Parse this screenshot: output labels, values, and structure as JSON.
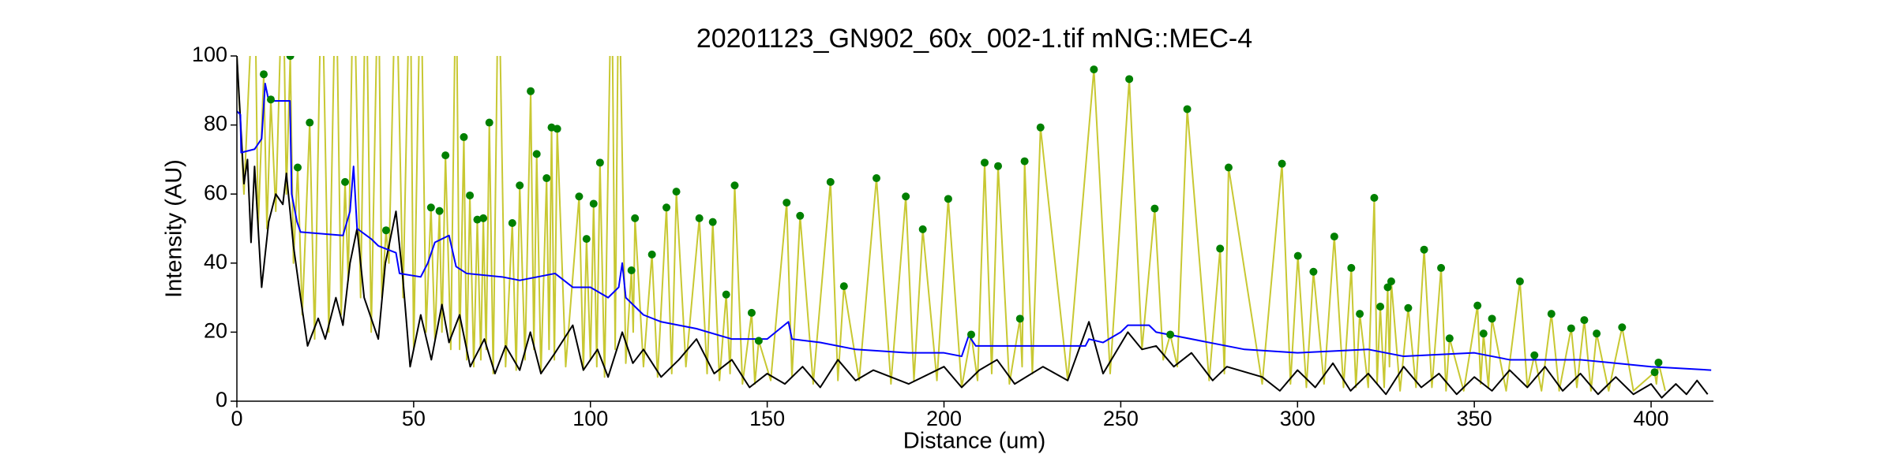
{
  "chart_data": {
    "type": "line",
    "title": "20201123_GN902_60x_002-1.tif mNG::MEC-4",
    "x_label": "Distance (um)",
    "y_label": "Intensity (AU)",
    "xlim": [
      0,
      417.5
    ],
    "ylim": [
      0,
      100
    ],
    "xticks": [
      0,
      50,
      100,
      150,
      200,
      250,
      300,
      350,
      400
    ],
    "yticks": [
      0,
      20,
      40,
      60,
      80,
      100
    ],
    "series": [
      {
        "style": "line",
        "color": "#c8c832",
        "x": [
          0,
          2,
          5,
          6,
          7.6,
          8.5,
          9.6,
          11,
          13,
          14,
          15.1,
          16,
          17.2,
          18.5,
          20.6,
          22,
          24,
          26,
          28,
          29.5,
          30.6,
          31.5,
          33,
          35,
          36.5,
          38,
          40,
          41,
          42.2,
          43,
          45,
          47,
          49,
          50,
          52,
          53.5,
          54.9,
          56,
          57.3,
          58,
          59,
          60.5,
          62,
          63,
          64.2,
          65,
          65.9,
          67,
          68,
          69,
          69.7,
          70.5,
          71.4,
          72.5,
          74,
          76,
          77.9,
          79,
          80,
          81.5,
          83.1,
          84,
          84.8,
          86,
          87.6,
          88.3,
          89,
          89.8,
          90.6,
          93,
          96.8,
          98,
          98.9,
          100,
          100.9,
          101.8,
          102.7,
          104,
          106,
          107,
          108,
          110,
          111.6,
          112.1,
          112.6,
          115,
          117.4,
          119,
          121.5,
          123,
          124.3,
          127,
          130.8,
          133,
          134.6,
          136.5,
          138.4,
          139.5,
          140.8,
          143,
          145.6,
          146.5,
          147.6,
          151,
          155.5,
          157,
          159.3,
          163,
          167.9,
          170,
          171.7,
          176,
          180.9,
          185,
          189.2,
          191.5,
          194,
          198,
          201.2,
          205,
          207.7,
          209.5,
          211.5,
          213.5,
          215.3,
          218.5,
          221.5,
          222.1,
          222.8,
          225,
          227.3,
          235,
          242.4,
          247,
          252.4,
          256,
          259.6,
          262,
          264,
          266,
          268.8,
          275,
          278.1,
          279.3,
          280.5,
          290,
          295.6,
          298,
          300.1,
          302.5,
          304.5,
          307.5,
          310.4,
          313,
          315.2,
          316.5,
          317.6,
          320,
          321.7,
          322.5,
          323.4,
          324.5,
          325.5,
          326,
          326.5,
          329,
          331.3,
          333.5,
          335.8,
          338,
          340.6,
          342,
          343,
          347,
          350.9,
          351.8,
          352.6,
          354,
          355,
          359,
          362.9,
          365,
          367,
          369,
          371.8,
          374,
          377.4,
          379,
          381.1,
          383,
          384.6,
          388,
          391.8,
          395,
          401,
          401.5,
          402.1,
          404
        ],
        "values": [
          100,
          60,
          130,
          50,
          94.7,
          50,
          87.4,
          55,
          130,
          60,
          100,
          40,
          67.7,
          25,
          80.7,
          18,
          130,
          20,
          130,
          25,
          63.5,
          35,
          130,
          30,
          130,
          20,
          130,
          30,
          49.5,
          40,
          130,
          30,
          130,
          15,
          130,
          20,
          56.1,
          18,
          55.1,
          20,
          71.2,
          15,
          130,
          15,
          76.5,
          12,
          59.6,
          10,
          52.6,
          12,
          53,
          15,
          80.7,
          8,
          130,
          10,
          51.6,
          9,
          62.5,
          12,
          89.8,
          15,
          71.6,
          8,
          64.6,
          15,
          79.3,
          12,
          78.9,
          10,
          59.3,
          9,
          47,
          12,
          57.2,
          10,
          69.1,
          7,
          130,
          15,
          130,
          11,
          37.9,
          20,
          53,
          10,
          42.5,
          7,
          56.1,
          8,
          60.7,
          10,
          53,
          8,
          51.9,
          6,
          30.9,
          8,
          62.5,
          5,
          25.6,
          5,
          17.5,
          6,
          57.5,
          7,
          53.7,
          5,
          63.5,
          6,
          33.3,
          6,
          64.6,
          5,
          59.3,
          6,
          49.8,
          6,
          58.6,
          4,
          19.3,
          6,
          69.1,
          8,
          68.1,
          5,
          23.9,
          10,
          69.5,
          8,
          79.3,
          6,
          96.1,
          8,
          93.3,
          15,
          55.8,
          12,
          19.3,
          10,
          84.6,
          6,
          44.2,
          8,
          67.7,
          5,
          68.8,
          5,
          42.1,
          4,
          37.5,
          5,
          47.7,
          4,
          38.6,
          4,
          25.3,
          4,
          58.9,
          5,
          27.4,
          4,
          33,
          10,
          34.7,
          3,
          27,
          4,
          43.9,
          4,
          38.6,
          3,
          18.2,
          3,
          27.7,
          5,
          19.6,
          4,
          23.9,
          3,
          34.7,
          4,
          13.3,
          3,
          25.3,
          3,
          21.1,
          4,
          23.5,
          3,
          19.6,
          3,
          21.4,
          3,
          8.4,
          5,
          11.2,
          3
        ]
      },
      {
        "style": "line",
        "color": "#000000",
        "x": [
          0,
          2,
          3,
          4,
          5,
          7,
          9,
          11,
          13,
          14,
          16,
          18,
          20,
          23,
          25,
          28,
          30,
          32,
          34,
          36,
          40,
          42,
          45,
          47,
          49,
          52,
          55,
          58,
          60,
          63,
          66,
          70,
          73,
          76,
          80,
          83,
          86,
          90,
          95,
          98,
          102,
          105,
          109,
          112,
          115,
          120,
          125,
          130,
          135,
          140,
          145,
          150,
          155,
          160,
          165,
          170,
          175,
          180,
          190,
          200,
          205,
          210,
          215,
          220,
          228,
          235,
          241,
          245,
          252,
          256,
          260,
          265,
          270,
          276,
          280,
          290,
          295,
          300,
          305,
          310,
          315,
          320,
          325,
          330,
          335,
          340,
          345,
          350,
          355,
          360,
          365,
          370,
          375,
          380,
          385,
          390,
          395,
          400,
          403,
          407,
          410,
          413,
          416
        ],
        "values": [
          100,
          63,
          70,
          46,
          68,
          33,
          52,
          60,
          57,
          66,
          45,
          30,
          16,
          24,
          18,
          30,
          22,
          40,
          50,
          30,
          18,
          40,
          55,
          35,
          10,
          25,
          12,
          28,
          17,
          25,
          10,
          18,
          8,
          16,
          9,
          20,
          8,
          14,
          22,
          9,
          15,
          7,
          20,
          11,
          15,
          7,
          12,
          18,
          8,
          12,
          4,
          8,
          5,
          10,
          4,
          12,
          6,
          9,
          5,
          10,
          4,
          9,
          12,
          5,
          10,
          6,
          23,
          8,
          20,
          15,
          16,
          10,
          14,
          6,
          10,
          7,
          3,
          9,
          4,
          11,
          3,
          8,
          2,
          10,
          4,
          8,
          2,
          7,
          3,
          9,
          4,
          10,
          3,
          8,
          2,
          7,
          2,
          5,
          1,
          5,
          2,
          6,
          2
        ]
      },
      {
        "style": "line",
        "color": "#0000ff",
        "x": [
          0,
          1,
          1.2,
          5,
          7,
          8,
          9,
          15,
          15.5,
          17,
          18,
          30,
          32,
          33,
          34,
          38,
          40,
          45,
          46,
          52,
          54,
          56,
          60,
          62,
          65,
          75,
          80,
          90,
          95,
          100,
          105,
          108,
          109,
          110,
          115,
          120,
          130,
          140,
          150,
          156,
          157,
          165,
          175,
          190,
          200,
          205,
          207,
          209,
          240,
          241,
          245,
          250,
          252,
          258,
          260,
          270,
          280,
          285,
          300,
          320,
          330,
          350,
          360,
          380,
          400,
          417
        ],
        "values": [
          84,
          83,
          72,
          73,
          76,
          92,
          87,
          87,
          60,
          52,
          49,
          48,
          55,
          68,
          50,
          47,
          45,
          43,
          37,
          36,
          40,
          46,
          48,
          39,
          37,
          36,
          35,
          37,
          33,
          33,
          30,
          33,
          40,
          30,
          25,
          23,
          21,
          18,
          18,
          23,
          18,
          17,
          15,
          14,
          14,
          13,
          19,
          16,
          16,
          18,
          17,
          20,
          22,
          22,
          20,
          18,
          16,
          15,
          14,
          15,
          13,
          14,
          12,
          12,
          10,
          9
        ]
      },
      {
        "style": "markers",
        "color": "#008000",
        "x": [
          7.6,
          9.6,
          15.1,
          17.2,
          20.6,
          30.6,
          42.2,
          54.9,
          57.3,
          59,
          64.2,
          65.9,
          68,
          69.7,
          71.4,
          77.9,
          80,
          83.1,
          84.8,
          87.6,
          89,
          90.6,
          96.8,
          98.9,
          100.9,
          102.7,
          111.6,
          112.6,
          117.4,
          121.5,
          124.3,
          130.8,
          134.6,
          138.4,
          140.8,
          145.6,
          147.6,
          155.5,
          159.3,
          167.9,
          171.7,
          180.9,
          189.2,
          194,
          201.2,
          207.7,
          211.5,
          215.3,
          221.5,
          222.8,
          227.3,
          242.4,
          252.4,
          259.6,
          264,
          268.8,
          278.1,
          280.5,
          295.6,
          300.1,
          304.5,
          310.4,
          315.2,
          317.6,
          321.7,
          323.4,
          325.5,
          326.5,
          331.3,
          335.8,
          340.6,
          343,
          350.9,
          352.6,
          355,
          362.9,
          367,
          371.8,
          377.4,
          381.1,
          384.6,
          391.8,
          401,
          402.1
        ],
        "values": [
          94.7,
          87.4,
          100,
          67.7,
          80.7,
          63.5,
          49.5,
          56.1,
          55.1,
          71.2,
          76.5,
          59.6,
          52.6,
          53,
          80.7,
          51.6,
          62.5,
          89.8,
          71.6,
          64.6,
          79.3,
          78.9,
          59.3,
          47,
          57.2,
          69.1,
          37.9,
          53,
          42.5,
          56.1,
          60.7,
          53,
          51.9,
          30.9,
          62.5,
          25.6,
          17.5,
          57.5,
          53.7,
          63.5,
          33.3,
          64.6,
          59.3,
          49.8,
          58.6,
          19.3,
          69.1,
          68.1,
          23.9,
          69.5,
          79.3,
          96.1,
          93.3,
          55.8,
          19.3,
          84.6,
          44.2,
          67.7,
          68.8,
          42.1,
          37.5,
          47.7,
          38.6,
          25.3,
          58.9,
          27.4,
          33,
          34.7,
          27,
          43.9,
          38.6,
          18.2,
          27.7,
          19.6,
          23.9,
          34.7,
          13.3,
          25.3,
          21.1,
          23.5,
          19.6,
          21.4,
          8.4,
          11.2
        ]
      }
    ]
  }
}
